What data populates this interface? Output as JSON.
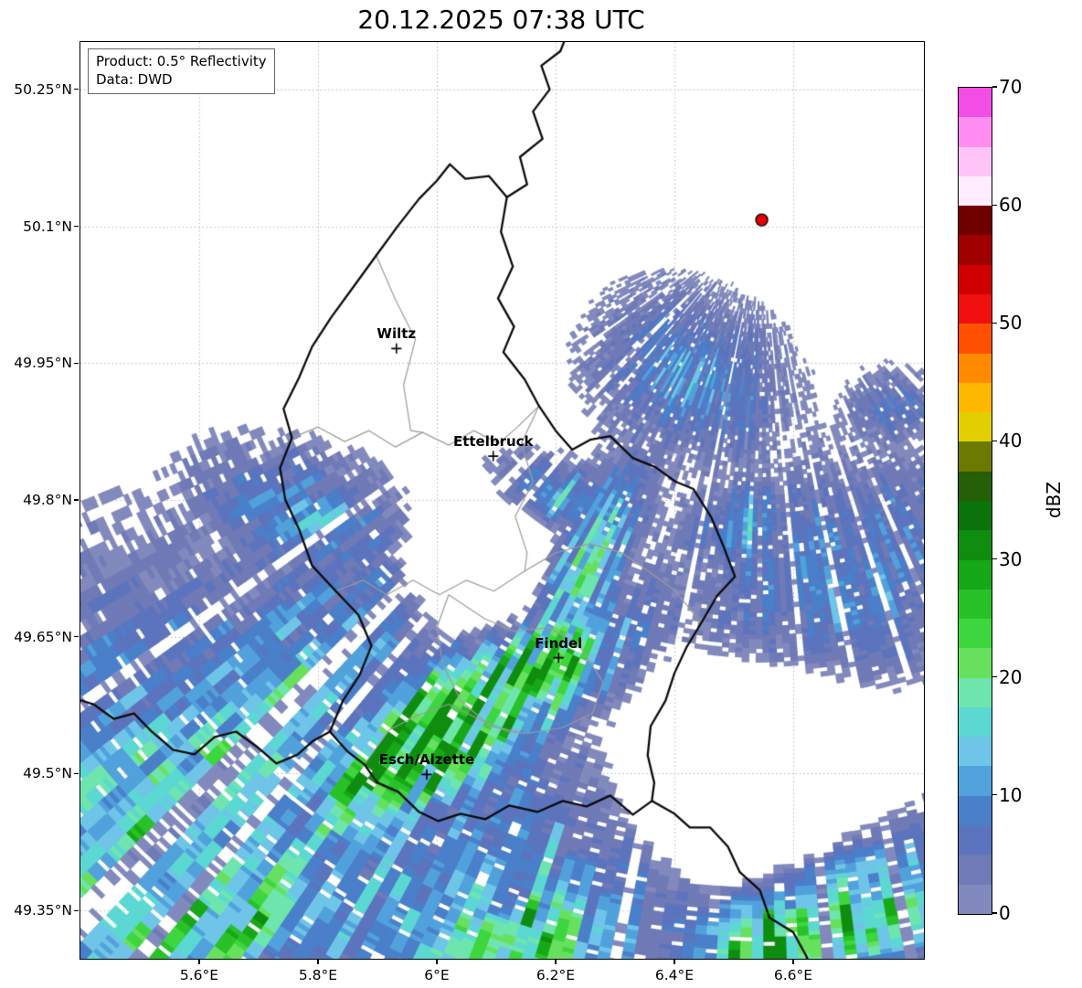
{
  "title": "20.12.2025 07:38 UTC",
  "info_box": {
    "product_line": "Product: 0.5° Reflectivity",
    "data_line": "Data: DWD"
  },
  "axes": {
    "extent": {
      "lon_min": 5.4,
      "lon_max": 6.82,
      "lat_min": 49.297,
      "lat_max": 50.302
    },
    "grid_color": "#b5b5b5",
    "x_ticks": [
      {
        "lon": 5.6,
        "label": "5.6°E"
      },
      {
        "lon": 5.8,
        "label": "5.8°E"
      },
      {
        "lon": 6.0,
        "label": "6°E"
      },
      {
        "lon": 6.2,
        "label": "6.2°E"
      },
      {
        "lon": 6.4,
        "label": "6.4°E"
      },
      {
        "lon": 6.6,
        "label": "6.6°E"
      }
    ],
    "y_ticks": [
      {
        "lat": 50.25,
        "label": "50.25°N"
      },
      {
        "lat": 50.1,
        "label": "50.1°N"
      },
      {
        "lat": 49.95,
        "label": "49.95°N"
      },
      {
        "lat": 49.8,
        "label": "49.8°N"
      },
      {
        "lat": 49.65,
        "label": "49.65°N"
      },
      {
        "lat": 49.5,
        "label": "49.5°N"
      },
      {
        "lat": 49.35,
        "label": "49.35°N"
      }
    ]
  },
  "cities": [
    {
      "name": "Wiltz",
      "lon": 5.932,
      "lat": 49.966
    },
    {
      "name": "Ettelbruck",
      "lon": 6.095,
      "lat": 49.848
    },
    {
      "name": "Findel",
      "lon": 6.205,
      "lat": 49.627
    },
    {
      "name": "Esch/Alzette",
      "lon": 5.983,
      "lat": 49.499
    }
  ],
  "radar_site": {
    "lon": 6.547,
    "lat": 50.107,
    "dot_color": "#e60000"
  },
  "colorbar": {
    "label": "dBZ",
    "min": 0,
    "max": 70,
    "step": 2.5,
    "ticks": [
      0,
      10,
      20,
      30,
      40,
      50,
      60,
      70
    ],
    "colors_low_to_high": [
      "#8289bd",
      "#6f7ab6",
      "#5c74bd",
      "#4a7fc9",
      "#51a1dc",
      "#6fc5e8",
      "#5cd8d2",
      "#6fe5ae",
      "#67e05e",
      "#3ed63e",
      "#28c228",
      "#17a817",
      "#0f8d0f",
      "#0a730a",
      "#275f06",
      "#6d7a00",
      "#e3cf00",
      "#ffb800",
      "#ff8a00",
      "#ff5000",
      "#f01010",
      "#d00000",
      "#a00000",
      "#700000",
      "#ffecff",
      "#ffc4f7",
      "#ff8cf0",
      "#f24de4"
    ]
  },
  "borders": {
    "country_color": "#0a0a0a",
    "district_color": "#9b9b9b",
    "country": [
      [
        [
          6.022,
          50.168
        ],
        [
          6.048,
          50.152
        ],
        [
          6.088,
          50.155
        ],
        [
          6.118,
          50.132
        ],
        [
          6.108,
          50.094
        ],
        [
          6.128,
          50.056
        ],
        [
          6.103,
          50.021
        ],
        [
          6.13,
          49.99
        ],
        [
          6.112,
          49.962
        ],
        [
          6.148,
          49.932
        ],
        [
          6.172,
          49.903
        ],
        [
          6.2,
          49.876
        ],
        [
          6.228,
          49.855
        ],
        [
          6.258,
          49.866
        ],
        [
          6.292,
          49.87
        ],
        [
          6.33,
          49.846
        ],
        [
          6.368,
          49.836
        ],
        [
          6.402,
          49.82
        ],
        [
          6.432,
          49.812
        ],
        [
          6.462,
          49.781
        ],
        [
          6.482,
          49.75
        ],
        [
          6.502,
          49.716
        ],
        [
          6.472,
          49.695
        ],
        [
          6.445,
          49.665
        ],
        [
          6.42,
          49.638
        ],
        [
          6.4,
          49.61
        ],
        [
          6.385,
          49.58
        ],
        [
          6.36,
          49.552
        ],
        [
          6.355,
          49.52
        ],
        [
          6.366,
          49.49
        ],
        [
          6.362,
          49.47
        ],
        [
          6.33,
          49.455
        ],
        [
          6.292,
          49.476
        ],
        [
          6.252,
          49.464
        ],
        [
          6.212,
          49.47
        ],
        [
          6.17,
          49.458
        ],
        [
          6.122,
          49.465
        ],
        [
          6.082,
          49.45
        ],
        [
          6.04,
          49.456
        ],
        [
          6.002,
          49.448
        ],
        [
          5.97,
          49.458
        ],
        [
          5.935,
          49.48
        ],
        [
          5.9,
          49.49
        ],
        [
          5.878,
          49.51
        ],
        [
          5.85,
          49.524
        ],
        [
          5.82,
          49.546
        ],
        [
          5.842,
          49.58
        ],
        [
          5.87,
          49.608
        ],
        [
          5.89,
          49.64
        ],
        [
          5.868,
          49.674
        ],
        [
          5.83,
          49.7
        ],
        [
          5.79,
          49.728
        ],
        [
          5.768,
          49.768
        ],
        [
          5.745,
          49.8
        ],
        [
          5.736,
          49.835
        ],
        [
          5.756,
          49.868
        ],
        [
          5.742,
          49.9
        ],
        [
          5.768,
          49.934
        ],
        [
          5.79,
          49.968
        ],
        [
          5.822,
          50.0
        ],
        [
          5.86,
          50.034
        ],
        [
          5.898,
          50.068
        ],
        [
          5.934,
          50.1
        ],
        [
          5.97,
          50.13
        ],
        [
          6.0,
          50.15
        ],
        [
          6.022,
          50.168
        ]
      ],
      [
        [
          6.118,
          50.132
        ],
        [
          6.152,
          50.146
        ],
        [
          6.14,
          50.176
        ],
        [
          6.178,
          50.196
        ],
        [
          6.162,
          50.226
        ],
        [
          6.19,
          50.25
        ],
        [
          6.176,
          50.276
        ],
        [
          6.208,
          50.292
        ],
        [
          6.222,
          50.315
        ]
      ],
      [
        [
          6.362,
          49.47
        ],
        [
          6.4,
          49.456
        ],
        [
          6.426,
          49.441
        ],
        [
          6.46,
          49.441
        ],
        [
          6.49,
          49.42
        ],
        [
          6.51,
          49.392
        ],
        [
          6.544,
          49.372
        ],
        [
          6.56,
          49.342
        ],
        [
          6.6,
          49.326
        ],
        [
          6.622,
          49.3
        ],
        [
          6.634,
          49.28
        ]
      ],
      [
        [
          5.82,
          49.546
        ],
        [
          5.792,
          49.536
        ],
        [
          5.766,
          49.521
        ],
        [
          5.73,
          49.511
        ],
        [
          5.696,
          49.53
        ],
        [
          5.662,
          49.546
        ],
        [
          5.626,
          49.54
        ],
        [
          5.592,
          49.521
        ],
        [
          5.556,
          49.526
        ],
        [
          5.52,
          49.546
        ],
        [
          5.49,
          49.566
        ],
        [
          5.456,
          49.56
        ],
        [
          5.422,
          49.576
        ],
        [
          5.392,
          49.582
        ]
      ]
    ],
    "districts": [
      [
        [
          5.756,
          49.868
        ],
        [
          5.8,
          49.88
        ],
        [
          5.845,
          49.864
        ],
        [
          5.886,
          49.876
        ],
        [
          5.93,
          49.858
        ],
        [
          5.976,
          49.874
        ],
        [
          6.02,
          49.86
        ],
        [
          6.062,
          49.876
        ],
        [
          6.104,
          49.862
        ],
        [
          6.136,
          49.88
        ],
        [
          6.172,
          49.903
        ]
      ],
      [
        [
          5.83,
          49.7
        ],
        [
          5.876,
          49.712
        ],
        [
          5.916,
          49.696
        ],
        [
          5.96,
          49.712
        ],
        [
          6.004,
          49.696
        ],
        [
          6.05,
          49.712
        ],
        [
          6.096,
          49.7
        ],
        [
          6.148,
          49.722
        ],
        [
          6.2,
          49.742
        ],
        [
          6.258,
          49.752
        ],
        [
          6.312,
          49.742
        ],
        [
          6.36,
          49.72
        ],
        [
          6.402,
          49.7
        ],
        [
          6.445,
          49.665
        ]
      ],
      [
        [
          6.02,
          49.696
        ],
        [
          6.08,
          49.67
        ],
        [
          6.13,
          49.656
        ],
        [
          6.19,
          49.66
        ],
        [
          6.24,
          49.64
        ],
        [
          6.28,
          49.6
        ],
        [
          6.262,
          49.566
        ],
        [
          6.21,
          49.55
        ],
        [
          6.15,
          49.544
        ],
        [
          6.09,
          49.552
        ],
        [
          6.04,
          49.58
        ],
        [
          6.01,
          49.62
        ],
        [
          6.0,
          49.66
        ],
        [
          6.02,
          49.696
        ]
      ],
      [
        [
          5.878,
          49.51
        ],
        [
          5.92,
          49.548
        ],
        [
          5.968,
          49.564
        ],
        [
          6.02,
          49.576
        ],
        [
          6.07,
          49.56
        ],
        [
          6.12,
          49.546
        ],
        [
          6.15,
          49.544
        ]
      ],
      [
        [
          5.898,
          50.068
        ],
        [
          5.93,
          50.02
        ],
        [
          5.964,
          49.976
        ],
        [
          5.944,
          49.926
        ],
        [
          5.956,
          49.876
        ],
        [
          5.976,
          49.874
        ]
      ],
      [
        [
          6.172,
          49.903
        ],
        [
          6.142,
          49.862
        ],
        [
          6.162,
          49.82
        ],
        [
          6.132,
          49.782
        ],
        [
          6.152,
          49.742
        ],
        [
          6.148,
          49.722
        ]
      ]
    ]
  },
  "precipitation": {
    "note": "radial reflectivity cells emanate from radar_site; blobs give dBZ envelope",
    "blobs": [
      {
        "lon": 5.55,
        "lat": 49.46,
        "rx_km": 36,
        "ry_km": 24,
        "rot_deg": 12,
        "dbz": 11
      },
      {
        "lon": 5.75,
        "lat": 49.6,
        "rx_km": 22,
        "ry_km": 14,
        "rot_deg": 25,
        "dbz": 9
      },
      {
        "lon": 6.03,
        "lat": 49.55,
        "rx_km": 21,
        "ry_km": 7,
        "rot_deg": 33,
        "dbz": 28
      },
      {
        "lon": 6.18,
        "lat": 49.62,
        "rx_km": 10,
        "ry_km": 5,
        "rot_deg": 40,
        "dbz": 26
      },
      {
        "lon": 6.24,
        "lat": 49.71,
        "rx_km": 14,
        "ry_km": 4,
        "rot_deg": 64,
        "dbz": 18
      },
      {
        "lon": 6.15,
        "lat": 49.37,
        "rx_km": 45,
        "ry_km": 18,
        "rot_deg": 8,
        "dbz": 11
      },
      {
        "lon": 6.63,
        "lat": 49.33,
        "rx_km": 20,
        "ry_km": 9,
        "rot_deg": 28,
        "dbz": 23
      },
      {
        "lon": 6.12,
        "lat": 49.31,
        "rx_km": 16,
        "ry_km": 7,
        "rot_deg": 20,
        "dbz": 21
      },
      {
        "lon": 5.62,
        "lat": 49.34,
        "rx_km": 20,
        "ry_km": 9,
        "rot_deg": 22,
        "dbz": 17
      },
      {
        "lon": 6.7,
        "lat": 49.71,
        "rx_km": 18,
        "ry_km": 13,
        "rot_deg": 0,
        "dbz": 8
      },
      {
        "lon": 6.51,
        "lat": 49.77,
        "rx_km": 7,
        "ry_km": 5,
        "rot_deg": 20,
        "dbz": 8
      },
      {
        "lon": 6.43,
        "lat": 49.93,
        "rx_km": 8,
        "ry_km": 10,
        "rot_deg": 60,
        "dbz": 9
      },
      {
        "lon": 6.21,
        "lat": 49.8,
        "rx_km": 4,
        "ry_km": 8,
        "rot_deg": 70,
        "dbz": 9
      },
      {
        "lon": 5.78,
        "lat": 49.785,
        "rx_km": 12,
        "ry_km": 6,
        "rot_deg": -15,
        "dbz": 9
      },
      {
        "lon": 5.9,
        "lat": 49.71,
        "rx_km": 5,
        "ry_km": 4,
        "rot_deg": 0,
        "dbz": 7
      },
      {
        "lon": 5.45,
        "lat": 49.59,
        "rx_km": 7,
        "ry_km": 6,
        "rot_deg": 0,
        "dbz": 7
      },
      {
        "lon": 6.78,
        "lat": 49.78,
        "rx_km": 8,
        "ry_km": 7,
        "rot_deg": 0,
        "dbz": 7
      },
      {
        "lon": 6.77,
        "lat": 49.9,
        "rx_km": 5,
        "ry_km": 4,
        "rot_deg": 0,
        "dbz": 6
      },
      {
        "lon": 5.47,
        "lat": 49.385,
        "rx_km": 4,
        "ry_km": 1.2,
        "rot_deg": 10,
        "dbz": 15
      },
      {
        "lon": 6.52,
        "lat": 49.47,
        "rx_km": 17,
        "ry_km": 12,
        "rot_deg": 10,
        "dbz": -15
      },
      {
        "lon": 6.08,
        "lat": 49.72,
        "rx_km": 9,
        "ry_km": 9,
        "rot_deg": 0,
        "dbz": -8
      }
    ]
  }
}
